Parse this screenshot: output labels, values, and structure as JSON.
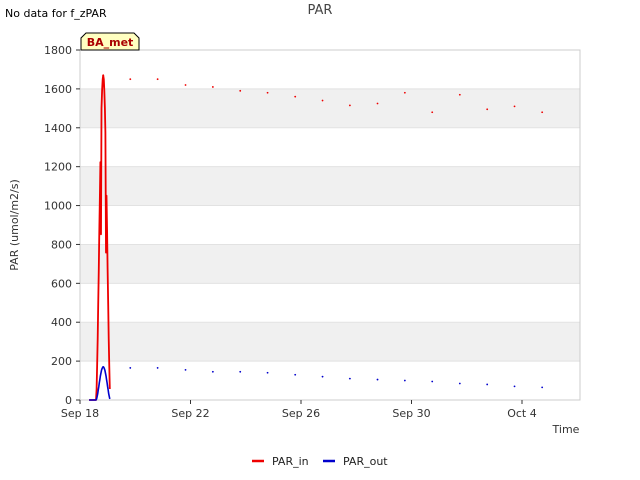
{
  "page": {
    "no_data_note": "No data for f_zPAR",
    "badge_label": "BA_met"
  },
  "colors": {
    "par_in": "#ee0000",
    "par_out": "#0000cc",
    "band": "#f0f0f0",
    "badge_fill": "#ffffc0",
    "badge_text": "#aa0000"
  },
  "chart_data": {
    "type": "line",
    "title": "PAR",
    "xlabel": "Time",
    "ylabel": "PAR (umol/m2/s)",
    "ylim": [
      0,
      1800
    ],
    "yticks": [
      0,
      200,
      400,
      600,
      800,
      1000,
      1200,
      1400,
      1600,
      1800
    ],
    "xlim_days": [
      0,
      18.1
    ],
    "xtick_labels": [
      "Sep 18",
      "Sep 22",
      "Sep 26",
      "Sep 30",
      "Oct 4"
    ],
    "xtick_days": [
      0,
      4,
      8,
      12,
      16
    ],
    "x_unit": "days since Sep 18",
    "legend": [
      "PAR_in",
      "PAR_out"
    ],
    "legend_position": "bottom-center",
    "series": [
      {
        "name": "PAR_in",
        "daily_peak_x": [
          0.84,
          1.82,
          2.81,
          3.82,
          4.81,
          5.8,
          6.79,
          7.79,
          8.78,
          9.77,
          10.77,
          11.76,
          12.75,
          13.75,
          14.74,
          15.73,
          16.73
        ],
        "daily_peak_y": [
          1670,
          1650,
          1650,
          1620,
          1610,
          1590,
          1580,
          1560,
          1540,
          1515,
          1525,
          1580,
          1480,
          1570,
          1495,
          1510,
          1480
        ]
      },
      {
        "name": "PAR_out",
        "daily_peak_x": [
          0.84,
          1.82,
          2.81,
          3.82,
          4.81,
          5.8,
          6.79,
          7.79,
          8.78,
          9.77,
          10.77,
          11.76,
          12.75,
          13.75,
          14.74,
          15.73,
          16.73
        ],
        "daily_peak_y": [
          170,
          165,
          165,
          155,
          145,
          145,
          140,
          130,
          120,
          110,
          105,
          100,
          95,
          85,
          80,
          70,
          65
        ]
      }
    ]
  }
}
